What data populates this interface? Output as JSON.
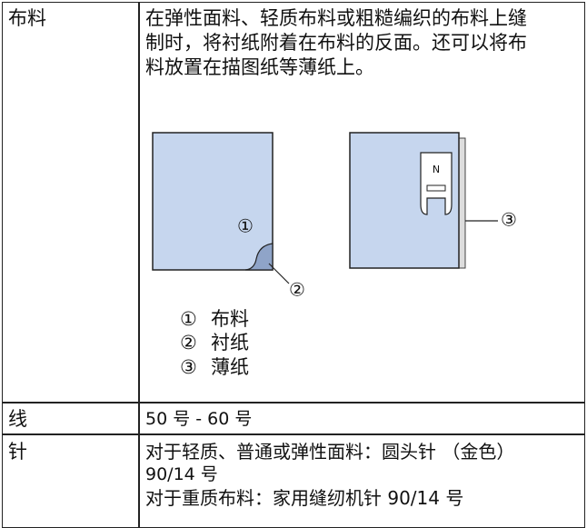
{
  "table": {
    "rows": [
      {
        "label": "布料",
        "lines": [
          "在弹性面料、轻质布料或粗糙编织的布料上缝",
          "制时，将衬纸附着在布料的反面。还可以将布",
          "料放置在描图纸等薄纸上。"
        ],
        "figure": {
          "callouts": [
            "①",
            "②",
            "③"
          ],
          "foot_letter": "N"
        },
        "legend": [
          {
            "marker": "①",
            "text": "布料"
          },
          {
            "marker": "②",
            "text": "衬纸"
          },
          {
            "marker": "③",
            "text": "薄纸"
          }
        ]
      },
      {
        "label": "线",
        "lines": [
          "50 号 - 60 号"
        ]
      },
      {
        "label": "针",
        "lines": [
          "对于轻质、普通或弹性面料：圆头针 （金色）",
          "90/14 号",
          "对于重质布料：家用缝纫机针 90/14 号"
        ]
      }
    ]
  }
}
